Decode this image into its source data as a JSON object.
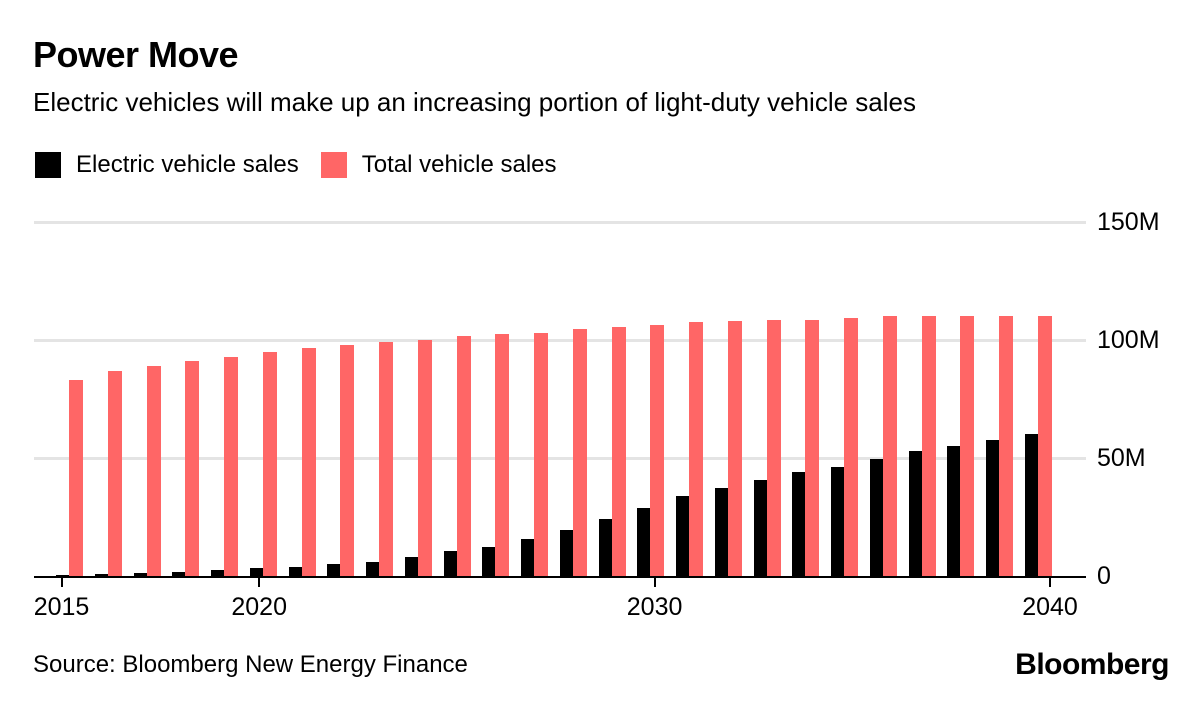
{
  "header": {
    "title": "Power Move",
    "subtitle": "Electric vehicles will make up an increasing portion of light-duty vehicle sales"
  },
  "legend": [
    {
      "label": "Electric vehicle sales",
      "color": "#000000"
    },
    {
      "label": "Total vehicle sales",
      "color": "#ff6666"
    }
  ],
  "colors": {
    "ev_bar": "#000000",
    "total_bar": "#ff6666",
    "gridline": "#e4e4e4",
    "axis": "#000000",
    "text": "#000000"
  },
  "chart_data": {
    "type": "bar",
    "title": "Power Move",
    "subtitle": "Electric vehicles will make up an increasing portion of light-duty vehicle sales",
    "categories": [
      2015,
      2016,
      2017,
      2018,
      2019,
      2020,
      2021,
      2022,
      2023,
      2024,
      2025,
      2026,
      2027,
      2028,
      2029,
      2030,
      2031,
      2032,
      2033,
      2034,
      2035,
      2036,
      2037,
      2038,
      2039,
      2040
    ],
    "series": [
      {
        "name": "Electric vehicle sales",
        "color": "#000000",
        "values": [
          0.3,
          0.7,
          1.2,
          1.8,
          2.4,
          3.2,
          4,
          5,
          6,
          8,
          10.5,
          12.5,
          15.5,
          19.5,
          24,
          29,
          34,
          37.5,
          40.5,
          44,
          46,
          49.5,
          53,
          55,
          57.5,
          60
        ]
      },
      {
        "name": "Total vehicle sales",
        "color": "#ff6666",
        "values": [
          83,
          87,
          89,
          91,
          93,
          95,
          96.5,
          98,
          99,
          100,
          101.5,
          102.5,
          103,
          104.5,
          105.5,
          106.5,
          107.5,
          108,
          108.5,
          108.5,
          109.5,
          110,
          110,
          110,
          110,
          110
        ]
      }
    ],
    "unit": "M",
    "xlabel": "",
    "ylabel": "",
    "ylim": [
      0,
      150
    ],
    "yticks": [
      {
        "value": 0,
        "label": "0"
      },
      {
        "value": 50,
        "label": "50M"
      },
      {
        "value": 100,
        "label": "100M"
      },
      {
        "value": 150,
        "label": "150M"
      }
    ],
    "xticks": [
      {
        "value": 2015,
        "label": "2015"
      },
      {
        "value": 2020,
        "label": "2020"
      },
      {
        "value": 2030,
        "label": "2030"
      },
      {
        "value": 2040,
        "label": "2040"
      }
    ],
    "grid": true,
    "legend_position": "top-left",
    "y_axis_side": "right"
  },
  "footer": {
    "source": "Source: Bloomberg New Energy Finance",
    "brand": "Bloomberg"
  }
}
